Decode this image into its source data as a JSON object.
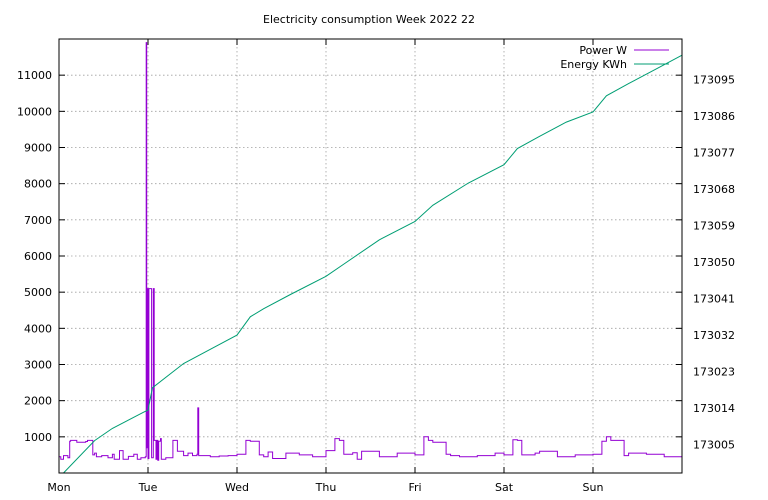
{
  "chart_data": {
    "type": "line",
    "title": "Electricity consumption Week 2022 22",
    "x_tick_labels": [
      "Mon",
      "Tue",
      "Wed",
      "Thu",
      "Fri",
      "Sat",
      "Sun"
    ],
    "xlim": [
      0,
      7
    ],
    "y_left": {
      "ylim": [
        0,
        12000
      ],
      "ticks": [
        1000,
        2000,
        3000,
        4000,
        5000,
        6000,
        7000,
        8000,
        9000,
        10000,
        11000
      ]
    },
    "y_right": {
      "ylim": [
        172998,
        173105
      ],
      "ticks": [
        173005,
        173014,
        173023,
        173032,
        173041,
        173050,
        173059,
        173068,
        173077,
        173086,
        173095
      ]
    },
    "grid": true,
    "legend_position": "top-right",
    "series": [
      {
        "name": "Power W",
        "axis": "left",
        "color": "#9400d3",
        "x": [
          0.0,
          0.02,
          0.05,
          0.1,
          0.12,
          0.13,
          0.2,
          0.3,
          0.32,
          0.38,
          0.4,
          0.42,
          0.48,
          0.55,
          0.6,
          0.62,
          0.68,
          0.72,
          0.78,
          0.84,
          0.88,
          0.92,
          0.97,
          0.98,
          0.985,
          0.99,
          1.0,
          1.01,
          1.04,
          1.06,
          1.07,
          1.09,
          1.1,
          1.11,
          1.12,
          1.14,
          1.15,
          1.2,
          1.28,
          1.33,
          1.4,
          1.45,
          1.5,
          1.55,
          1.56,
          1.57,
          1.6,
          1.7,
          1.8,
          1.9,
          2.0,
          2.1,
          2.15,
          2.25,
          2.3,
          2.35,
          2.4,
          2.55,
          2.7,
          2.85,
          3.0,
          3.1,
          3.15,
          3.2,
          3.3,
          3.35,
          3.4,
          3.6,
          3.8,
          4.0,
          4.1,
          4.15,
          4.2,
          4.35,
          4.4,
          4.5,
          4.7,
          4.9,
          5.0,
          5.1,
          5.15,
          5.2,
          5.35,
          5.4,
          5.6,
          5.8,
          6.0,
          6.1,
          6.15,
          6.2,
          6.35,
          6.4,
          6.6,
          6.8,
          7.0
        ],
        "values": [
          450,
          380,
          480,
          420,
          880,
          900,
          850,
          870,
          900,
          500,
          550,
          450,
          480,
          420,
          520,
          380,
          620,
          380,
          460,
          520,
          380,
          420,
          450,
          11900,
          700,
          5100,
          400,
          5100,
          420,
          5100,
          900,
          380,
          900,
          350,
          880,
          950,
          380,
          420,
          900,
          600,
          480,
          550,
          480,
          520,
          1800,
          480,
          480,
          450,
          470,
          480,
          520,
          900,
          880,
          500,
          450,
          580,
          400,
          550,
          500,
          450,
          620,
          950,
          900,
          520,
          560,
          380,
          600,
          450,
          550,
          500,
          1000,
          900,
          850,
          520,
          480,
          450,
          480,
          550,
          500,
          920,
          900,
          500,
          550,
          600,
          450,
          500,
          520,
          880,
          1000,
          900,
          480,
          550,
          520,
          450,
          500
        ]
      },
      {
        "name": "Energy KWh",
        "axis": "right",
        "color": "#009e73",
        "x": [
          0.0,
          0.05,
          0.4,
          0.6,
          0.95,
          1.0,
          1.05,
          1.4,
          1.7,
          2.0,
          2.15,
          2.3,
          2.6,
          3.0,
          3.2,
          3.6,
          4.0,
          4.2,
          4.6,
          5.0,
          5.15,
          5.4,
          5.7,
          6.0,
          6.15,
          6.4,
          6.7,
          7.0
        ],
        "values": [
          172998.0,
          172998.0,
          173006.0,
          173009.0,
          173013.0,
          173013.5,
          173019.0,
          173025.0,
          173028.5,
          173032.0,
          173036.5,
          173038.5,
          173042.0,
          173046.5,
          173049.5,
          173055.5,
          173060.0,
          173064.0,
          173069.5,
          173074.0,
          173078.0,
          173081.0,
          173084.5,
          173087.0,
          173091.0,
          173094.0,
          173097.5,
          173101.0
        ]
      }
    ]
  }
}
